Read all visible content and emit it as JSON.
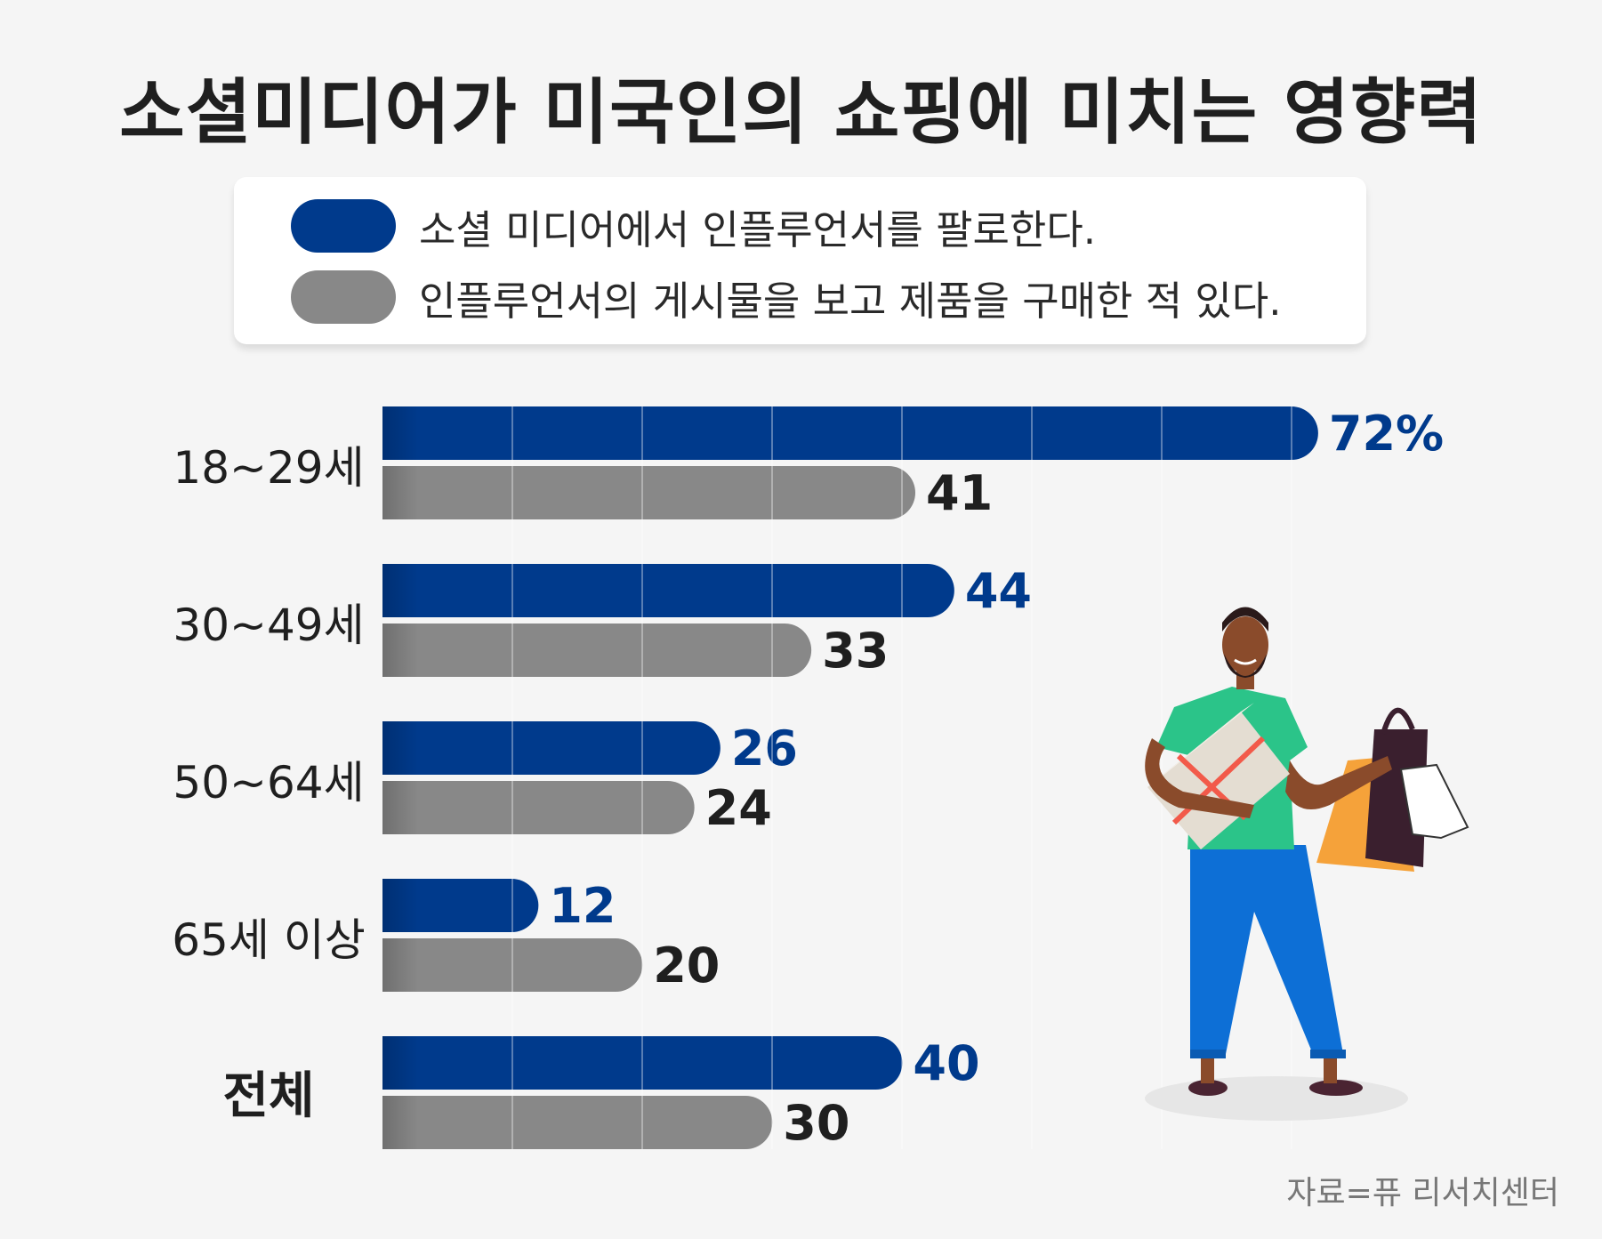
{
  "title": "소셜미디어가 미국인의 쇼핑에 미치는 영향력",
  "legend": [
    {
      "label": "소셜 미디어에서 인플루언서를 팔로한다.",
      "color": "#003a8c"
    },
    {
      "label": "인플루언서의 게시물을 보고 제품을 구매한 적 있다.",
      "color": "#888888"
    }
  ],
  "source": "자료=퓨 리서치센터",
  "colors": {
    "blue": "#003a8c",
    "gray": "#888888",
    "background": "#f5f5f5",
    "gridline": "#dcdcdc"
  },
  "illustration": "man-holding-gift-box-and-shopping-bags",
  "chart_data": {
    "type": "bar",
    "orientation": "horizontal",
    "title": "소셜미디어가 미국인의 쇼핑에 미치는 영향력",
    "categories": [
      "18~29세",
      "30~49세",
      "50~64세",
      "65세 이상",
      "전체"
    ],
    "series": [
      {
        "name": "소셜 미디어에서 인플루언서를 팔로한다.",
        "values": [
          72,
          44,
          26,
          12,
          40
        ],
        "labels": [
          "72%",
          "44",
          "26",
          "12",
          "40"
        ]
      },
      {
        "name": "인플루언서의 게시물을 보고 제품을 구매한 적 있다.",
        "values": [
          41,
          33,
          24,
          20,
          30
        ],
        "labels": [
          "41",
          "33",
          "24",
          "20",
          "30"
        ]
      }
    ],
    "unit": "%",
    "xlim": [
      0,
      75
    ],
    "grid": true,
    "legend_position": "top"
  }
}
